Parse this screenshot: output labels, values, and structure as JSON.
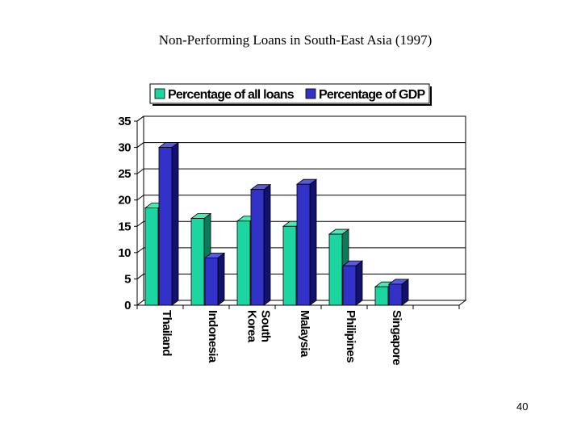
{
  "page_number": "40",
  "colors": {
    "loans_front": "#1bd6a0",
    "loans_top": "#4fe6b8",
    "loans_side": "#0b7a58",
    "gdp_front": "#3232c8",
    "gdp_top": "#5a5ae0",
    "gdp_side": "#12126e",
    "gridline": "#000000",
    "background": "#ffffff"
  },
  "chart_data": {
    "type": "bar",
    "title": "Non-Performing Loans in South-East Asia (1997)",
    "xlabel": "",
    "ylabel": "",
    "ylim": [
      0,
      35
    ],
    "yticks": [
      0,
      5,
      10,
      15,
      20,
      25,
      30,
      35
    ],
    "grid": true,
    "legend_position": "top",
    "three_d": true,
    "categories": [
      "Thailand",
      "Indonesia",
      "South Korea",
      "Malaysia",
      "Philipines",
      "Singapore"
    ],
    "category_labels": [
      [
        "Thailand"
      ],
      [
        "Indonesia"
      ],
      [
        "South",
        "Korea"
      ],
      [
        "Malaysia"
      ],
      [
        "Philipines"
      ],
      [
        "Singapore"
      ]
    ],
    "series": [
      {
        "name": "Percentage of all loans",
        "values": [
          18.5,
          16.5,
          16,
          15,
          13.5,
          3.5
        ]
      },
      {
        "name": "Percentage of GDP",
        "values": [
          30,
          9,
          22,
          23,
          7.5,
          4
        ]
      }
    ]
  }
}
